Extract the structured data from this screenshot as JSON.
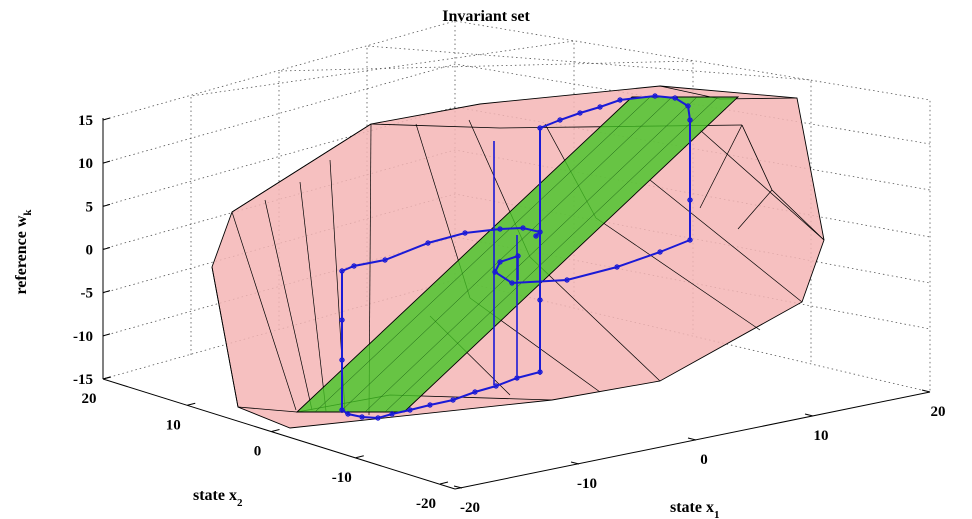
{
  "chart_data": {
    "type": "3d-polytope-trajectory",
    "title": "Invariant set",
    "xlabel": "state x",
    "xlabel_sub": "1",
    "ylabel": "state x",
    "ylabel_sub": "2",
    "zlabel": "reference w",
    "zlabel_sub": "k",
    "xlim": [
      -20,
      20
    ],
    "ylim": [
      -20,
      20
    ],
    "zlim": [
      -15,
      15
    ],
    "x_ticks": [
      "-20",
      "-10",
      "0",
      "10",
      "20"
    ],
    "y_ticks": [
      "-20",
      "-10",
      "0",
      "10",
      "20"
    ],
    "z_ticks": [
      "-15",
      "-10",
      "-5",
      "0",
      "5",
      "10",
      "15"
    ],
    "grid": true,
    "colors": {
      "invariant_set_fill": "#f4b5b5",
      "invariant_set_edge": "#000000",
      "target_plane_fill": "#44c424",
      "trajectory": "#1a1ad6"
    }
  }
}
